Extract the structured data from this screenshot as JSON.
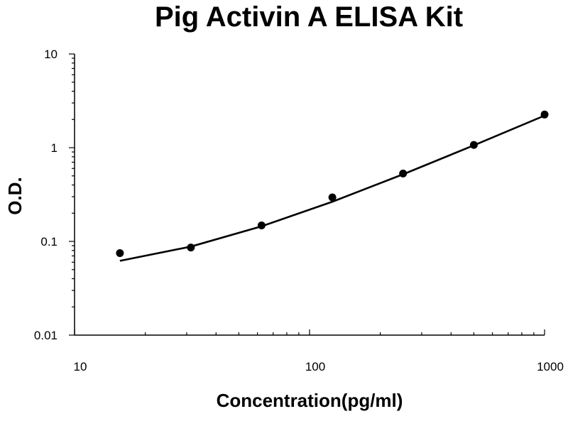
{
  "chart_data": {
    "type": "scatter",
    "title": "Pig Activin A ELISA Kit",
    "xlabel": "Concentration(pg/ml)",
    "ylabel": "O.D.",
    "xscale": "log",
    "yscale": "log",
    "xlim": [
      10,
      1000
    ],
    "ylim": [
      0.01,
      10
    ],
    "x_ticks": [
      "10",
      "100",
      "1000"
    ],
    "y_ticks": [
      "0.01",
      "0.1",
      "1",
      "10"
    ],
    "grid": false,
    "series": [
      {
        "type": "scatter",
        "x": [
          15.6,
          31.25,
          62.5,
          125,
          250,
          500,
          1000
        ],
        "y": [
          0.075,
          0.086,
          0.148,
          0.295,
          0.53,
          1.07,
          2.26
        ]
      },
      {
        "type": "line",
        "x": [
          15.6,
          31.25,
          62.5,
          125,
          250,
          500,
          1000
        ],
        "y": [
          0.062,
          0.088,
          0.145,
          0.265,
          0.52,
          1.06,
          2.2
        ]
      }
    ]
  }
}
